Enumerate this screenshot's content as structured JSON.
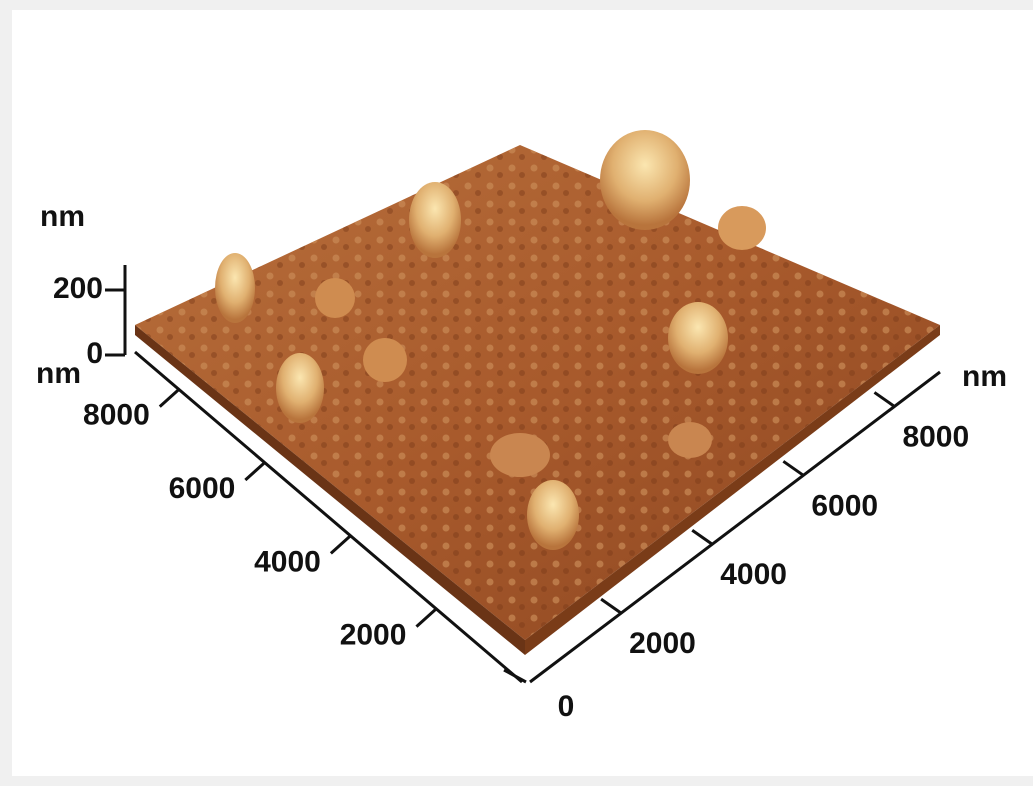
{
  "z_axis": {
    "unit": "nm",
    "ticks": [
      0,
      200
    ]
  },
  "left_axis": {
    "unit": "nm",
    "ticks": [
      2000,
      4000,
      6000,
      8000
    ]
  },
  "right_axis": {
    "unit": "nm",
    "ticks": [
      2000,
      4000,
      6000,
      8000
    ]
  },
  "origin": 0
}
